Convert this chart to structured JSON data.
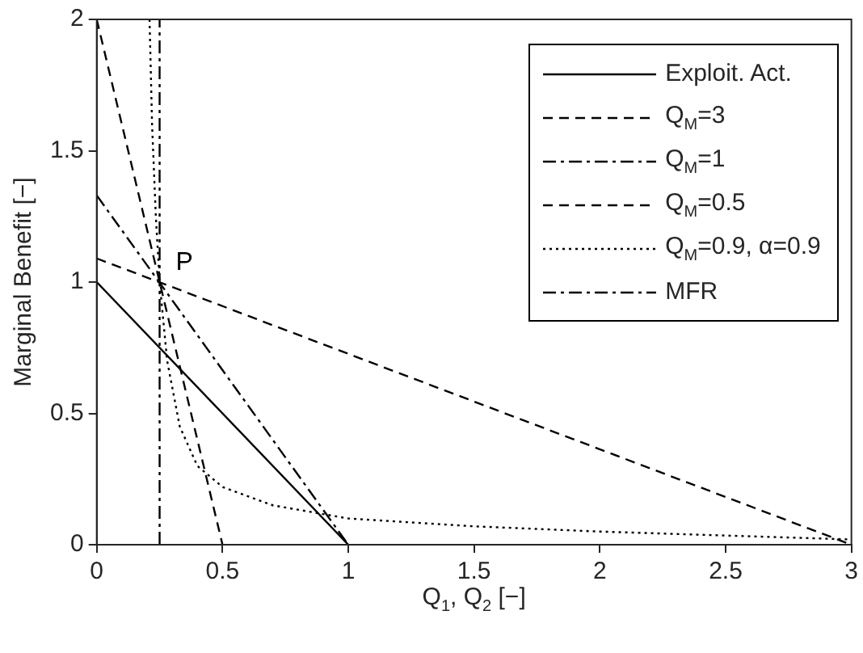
{
  "chart_data": {
    "type": "line",
    "xlabel": "Q$_{1}$, Q$_{2}$ [−]",
    "ylabel": "Marginal Benefit [−]",
    "xlim": [
      0,
      3
    ],
    "xticks": [
      0,
      0.5,
      1,
      1.5,
      2,
      2.5,
      3
    ],
    "ylim": [
      0,
      2
    ],
    "yticks": [
      0,
      0.5,
      1,
      1.5,
      2
    ],
    "grid": false,
    "legend": "top right",
    "marker": "none",
    "series": [
      {
        "name": "Exploit. Act.",
        "color": "#000000",
        "line_style": "solid",
        "x": [
          0,
          1
        ],
        "values": [
          1,
          0
        ]
      },
      {
        "name": "Q$_{M}$=3",
        "color": "#000000",
        "line_style": "dashed",
        "x": [
          0,
          3
        ],
        "values": [
          1.09,
          0
        ]
      },
      {
        "name": "Q$_{M}$=1",
        "color": "#000000",
        "line_style": "dashdot",
        "x": [
          0,
          1
        ],
        "values": [
          1.33,
          0
        ]
      },
      {
        "name": "Q$_{M}$=0.5",
        "color": "#000000",
        "line_style": "dashed",
        "x": [
          0,
          0.5
        ],
        "values": [
          2,
          0
        ]
      },
      {
        "name": "Q$_{M}$=0.9, α=0.9",
        "color": "#000000",
        "line_style": "dotted",
        "x": [
          0.21,
          0.22,
          0.235,
          0.25,
          0.28,
          0.33,
          0.4,
          0.5,
          0.7,
          1,
          1.5,
          2,
          2.5,
          3
        ],
        "values": [
          2,
          1.6,
          1.25,
          1,
          0.7,
          0.45,
          0.3,
          0.22,
          0.15,
          0.1,
          0.07,
          0.05,
          0.035,
          0.02
        ]
      },
      {
        "name": "MFR",
        "color": "#000000",
        "line_style": "dashdot",
        "x": [
          0.25,
          0.25
        ],
        "values": [
          0,
          2
        ]
      }
    ],
    "annotations": [
      {
        "text": "P",
        "x": 0.25,
        "y": 1
      }
    ]
  }
}
